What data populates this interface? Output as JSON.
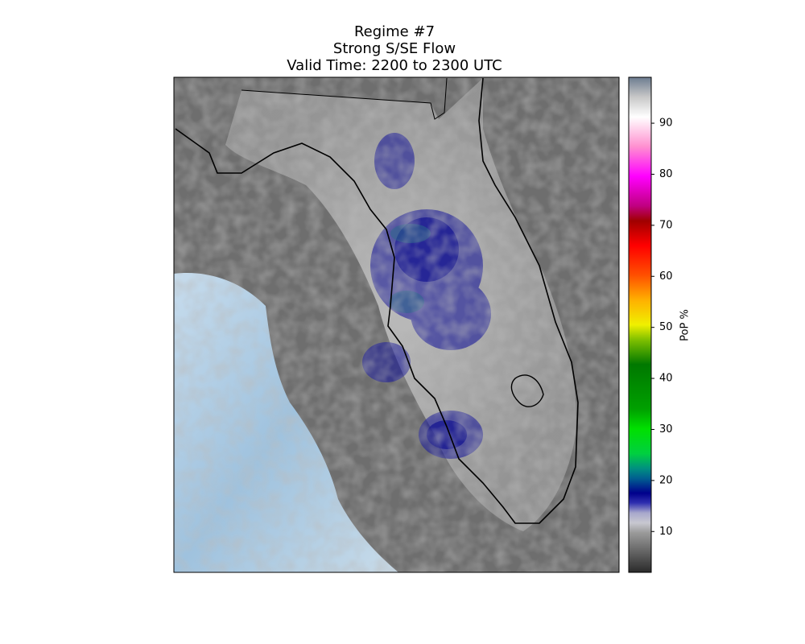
{
  "title": [
    "Regime #7",
    "Strong S/SE Flow",
    "Valid Time: 2200 to 2300 UTC"
  ],
  "colorbar": {
    "label": "PoP %",
    "lim": [
      2,
      99
    ],
    "ticks": [
      10,
      20,
      30,
      40,
      50,
      60,
      70,
      80,
      90
    ]
  }
}
